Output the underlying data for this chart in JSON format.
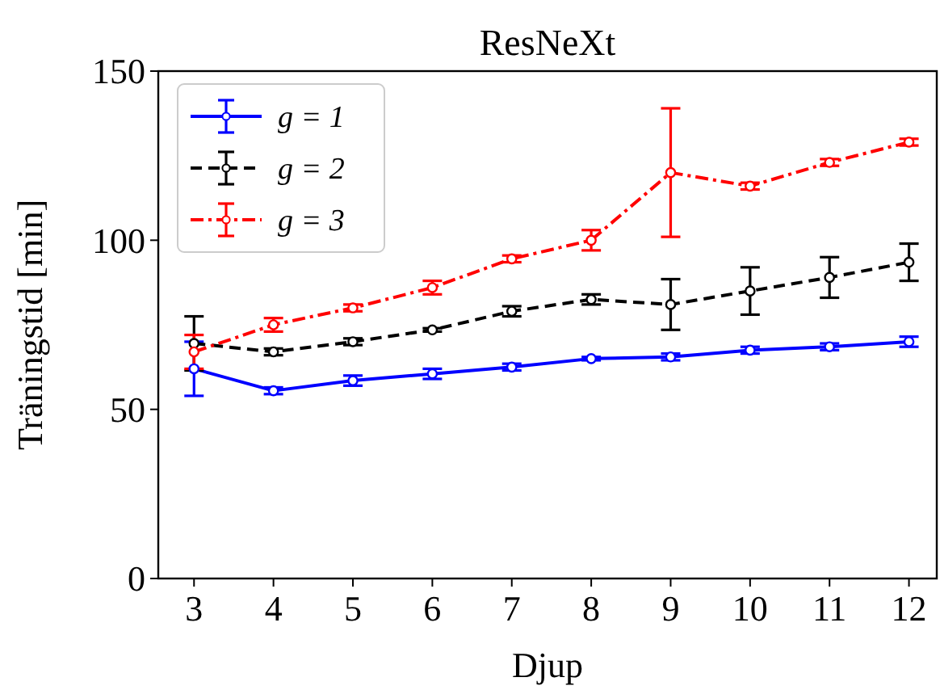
{
  "chart_data": {
    "type": "line",
    "title": "ResNeXt",
    "xlabel": "Djup",
    "ylabel": "Träningstid [min]",
    "x": [
      3,
      4,
      5,
      6,
      7,
      8,
      9,
      10,
      11,
      12
    ],
    "xlim": [
      2.55,
      12.35
    ],
    "xticks": [
      3,
      4,
      5,
      6,
      7,
      8,
      9,
      10,
      11,
      12
    ],
    "ylim": [
      0,
      150
    ],
    "yticks": [
      0,
      50,
      100,
      150
    ],
    "series": [
      {
        "name": "g = 1",
        "color": "#0000ff",
        "line_style": "solid",
        "values": [
          62,
          55.5,
          58.5,
          60.5,
          62.5,
          65,
          65.5,
          67.5,
          68.5,
          70
        ],
        "errors": [
          8,
          1,
          1.5,
          1.5,
          1,
          0.5,
          1,
          1,
          1,
          1.5
        ]
      },
      {
        "name": "g = 2",
        "color": "#000000",
        "line_style": "dashed",
        "values": [
          69.5,
          67,
          70,
          73.5,
          79,
          82.5,
          81,
          85,
          89,
          93.5
        ],
        "errors": [
          8,
          1,
          1,
          0.5,
          1.5,
          1.5,
          7.5,
          7,
          6,
          5.5
        ]
      },
      {
        "name": "g = 3",
        "color": "#ff0000",
        "line_style": "dashdot",
        "values": [
          67,
          75,
          80,
          86,
          94.5,
          100,
          120,
          116,
          123,
          129
        ],
        "errors": [
          5,
          2,
          1,
          2,
          1,
          3,
          19,
          1,
          1,
          1
        ]
      }
    ],
    "marker": "circle",
    "legend": "top left",
    "grid": false
  }
}
